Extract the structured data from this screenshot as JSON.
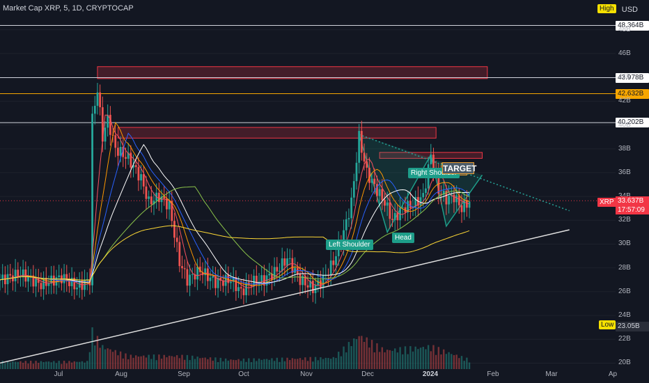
{
  "header": {
    "title": "Market Cap XRP, 5, 1D, CRYPTOCAP",
    "currency": "USD",
    "high_label": "High",
    "low_label": "Low"
  },
  "price_tags": [
    {
      "label": "48.364B",
      "value": 48.364,
      "style": "white"
    },
    {
      "label": "43.978B",
      "value": 43.978,
      "style": "white"
    },
    {
      "label": "42.632B",
      "value": 42.632,
      "style": "orange"
    },
    {
      "label": "40.202B",
      "value": 40.202,
      "style": "white"
    },
    {
      "label": "23.05B",
      "value": 23.05,
      "style": "dark"
    }
  ],
  "current": {
    "symbol": "XRP",
    "price": "33.637B",
    "countdown": "17:57:09",
    "value": 33.637
  },
  "annotations": {
    "left_shoulder": "Left Shoulder",
    "head": "Head",
    "right_shoulder": "Right Shoulder",
    "target": "TARGET"
  },
  "colors": {
    "background": "#131722",
    "up": "#26a69a",
    "down": "#ef5350",
    "zone": "#f23645",
    "pattern": "#1e9e8a"
  },
  "chart_data": {
    "type": "candlestick",
    "title": "Market Cap XRP, 5, 1D, CRYPTOCAP",
    "x_axis": [
      "Jul",
      "Aug",
      "Sep",
      "Oct",
      "Nov",
      "Dec",
      "2024",
      "Feb",
      "Mar",
      "Ap"
    ],
    "y_ticks": [
      "20B",
      "22B",
      "24B",
      "26B",
      "28B",
      "30B",
      "32B",
      "34B",
      "36B",
      "38B",
      "40B",
      "42B",
      "44B",
      "46B",
      "48B"
    ],
    "y_range": [
      19.5,
      50.5
    ],
    "high": 48.364,
    "low": 23.05,
    "last": 33.637,
    "close_path": [
      {
        "t": 0,
        "v": 27.0
      },
      {
        "t": 8,
        "v": 27.5
      },
      {
        "t": 16,
        "v": 26.6
      },
      {
        "t": 24,
        "v": 27.2
      },
      {
        "t": 30,
        "v": 26.4
      },
      {
        "t": 35,
        "v": 27.0
      },
      {
        "t": 36,
        "v": 40.5
      },
      {
        "t": 38,
        "v": 43.0
      },
      {
        "t": 40,
        "v": 39.0
      },
      {
        "t": 42,
        "v": 40.5
      },
      {
        "t": 45,
        "v": 38.0
      },
      {
        "t": 50,
        "v": 37.2
      },
      {
        "t": 55,
        "v": 35.5
      },
      {
        "t": 58,
        "v": 33.5
      },
      {
        "t": 62,
        "v": 34.0
      },
      {
        "t": 66,
        "v": 33.2
      },
      {
        "t": 70,
        "v": 28.5
      },
      {
        "t": 73,
        "v": 27.0
      },
      {
        "t": 78,
        "v": 27.8
      },
      {
        "t": 84,
        "v": 26.8
      },
      {
        "t": 90,
        "v": 27.0
      },
      {
        "t": 94,
        "v": 26.0
      },
      {
        "t": 98,
        "v": 26.8
      },
      {
        "t": 103,
        "v": 27.0
      },
      {
        "t": 108,
        "v": 27.8
      },
      {
        "t": 112,
        "v": 28.8
      },
      {
        "t": 117,
        "v": 27.0
      },
      {
        "t": 122,
        "v": 26.3
      },
      {
        "t": 126,
        "v": 27.0
      },
      {
        "t": 130,
        "v": 28.5
      },
      {
        "t": 134,
        "v": 31.0
      },
      {
        "t": 137,
        "v": 33.5
      },
      {
        "t": 140,
        "v": 39.0
      },
      {
        "t": 143,
        "v": 36.0
      },
      {
        "t": 147,
        "v": 34.5
      },
      {
        "t": 150,
        "v": 33.5
      },
      {
        "t": 153,
        "v": 32.0
      },
      {
        "t": 157,
        "v": 33.0
      },
      {
        "t": 161,
        "v": 33.3
      },
      {
        "t": 165,
        "v": 34.0
      },
      {
        "t": 168,
        "v": 37.5
      },
      {
        "t": 171,
        "v": 34.5
      },
      {
        "t": 174,
        "v": 33.8
      },
      {
        "t": 177,
        "v": 34.0
      },
      {
        "t": 180,
        "v": 33.0
      },
      {
        "t": 183,
        "v": 33.6
      }
    ],
    "volume_profile": [
      {
        "t": 0,
        "v": 0.2
      },
      {
        "t": 34,
        "v": 0.2
      },
      {
        "t": 36,
        "v": 1.0
      },
      {
        "t": 40,
        "v": 0.6
      },
      {
        "t": 50,
        "v": 0.35
      },
      {
        "t": 70,
        "v": 0.35
      },
      {
        "t": 90,
        "v": 0.25
      },
      {
        "t": 130,
        "v": 0.3
      },
      {
        "t": 140,
        "v": 0.9
      },
      {
        "t": 150,
        "v": 0.5
      },
      {
        "t": 168,
        "v": 0.6
      },
      {
        "t": 183,
        "v": 0.25
      }
    ],
    "supply_zones": [
      {
        "from": 38,
        "to": 190,
        "low": 43.9,
        "high": 44.9
      },
      {
        "from": 46,
        "to": 170,
        "low": 38.9,
        "high": 39.8
      },
      {
        "from": 148,
        "to": 188,
        "low": 37.2,
        "high": 37.7
      }
    ],
    "trendlines": [
      {
        "from": {
          "t": 0,
          "v": 20.0
        },
        "to": {
          "t": 222,
          "v": 31.2
        },
        "style": "solid"
      },
      {
        "from": {
          "t": 140,
          "v": 39.2
        },
        "to": {
          "t": 222,
          "v": 32.8
        },
        "style": "dotted"
      }
    ],
    "pattern_points": [
      {
        "t": 140,
        "v": 39.2
      },
      {
        "t": 151,
        "v": 31.0
      },
      {
        "t": 168,
        "v": 37.5
      },
      {
        "t": 174,
        "v": 31.5
      },
      {
        "t": 188,
        "v": 35.8
      }
    ],
    "target_box": {
      "from": 172,
      "to": 182,
      "low": 35.8,
      "high": 36.8
    }
  }
}
